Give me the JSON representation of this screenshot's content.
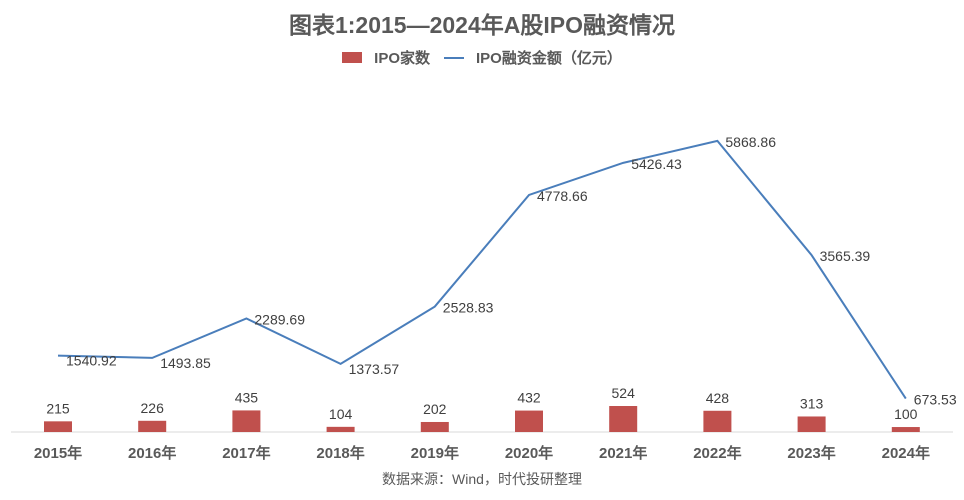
{
  "chart_data": {
    "type": "bar+line",
    "title": "图表1:2015—2024年A股IPO融资情况",
    "categories": [
      "2015年",
      "2016年",
      "2017年",
      "2018年",
      "2019年",
      "2020年",
      "2021年",
      "2022年",
      "2023年",
      "2024年"
    ],
    "series": [
      {
        "name": "IPO家数",
        "type": "bar",
        "color": "#c0504d",
        "values": [
          215,
          226,
          435,
          104,
          202,
          432,
          524,
          428,
          313,
          100
        ]
      },
      {
        "name": "IPO融资金额（亿元）",
        "type": "line",
        "color": "#4a7ebb",
        "values": [
          1540.92,
          1493.85,
          2289.69,
          1373.57,
          2528.83,
          4778.66,
          5426.43,
          5868.86,
          3565.39,
          673.53
        ]
      }
    ],
    "ylim": [
      0,
      7000
    ],
    "grid": false,
    "legend": "top"
  },
  "source": "数据来源：Wind，时代投研整理"
}
